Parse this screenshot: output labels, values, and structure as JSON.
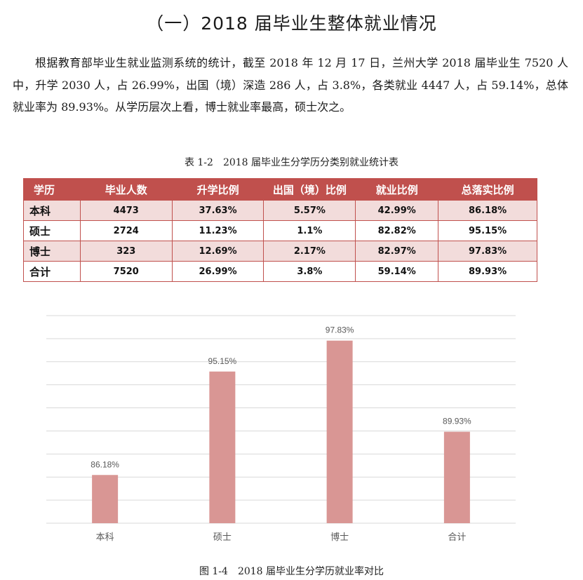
{
  "heading": "（一）2018 届毕业生整体就业情况",
  "paragraph": "根据教育部毕业生就业监测系统的统计，截至 2018 年 12 月 17 日，兰州大学 2018 届毕业生 7520 人中，升学 2030 人，占 26.99%，出国（境）深造 286 人，占 3.8%，各类就业 4447 人，占 59.14%，总体就业率为 89.93%。从学历层次上看，博士就业率最高，硕士次之。",
  "table": {
    "caption": "表 1-2　2018 届毕业生分学历分类别就业统计表",
    "headers": [
      "学历",
      "毕业人数",
      "升学比例",
      "出国（境）比例",
      "就业比例",
      "总落实比例"
    ],
    "rows": [
      [
        "本科",
        "4473",
        "37.63%",
        "5.57%",
        "42.99%",
        "86.18%"
      ],
      [
        "硕士",
        "2724",
        "11.23%",
        "1.1%",
        "82.82%",
        "95.15%"
      ],
      [
        "博士",
        "323",
        "12.69%",
        "2.17%",
        "82.97%",
        "97.83%"
      ],
      [
        "合计",
        "7520",
        "26.99%",
        "3.8%",
        "59.14%",
        "89.93%"
      ]
    ],
    "header_color": "#c0504d",
    "shade_color": "#f2dcdb"
  },
  "figure": {
    "caption": "图 1-4　2018 届毕业生分学历就业率对比"
  },
  "chart_data": {
    "type": "bar",
    "categories": [
      "本科",
      "硕士",
      "博士",
      "合计"
    ],
    "values": [
      86.18,
      95.15,
      97.83,
      89.93
    ],
    "value_labels": [
      "86.18%",
      "95.15%",
      "97.83%",
      "89.93%"
    ],
    "title": "",
    "xlabel": "",
    "ylabel": "",
    "ylim": [
      82,
      100
    ],
    "grid": true,
    "y_tick_labels_shown": false,
    "bar_color": "#d99694",
    "grid_color": "#d9d9d9",
    "axis_label_color": "#595959"
  }
}
